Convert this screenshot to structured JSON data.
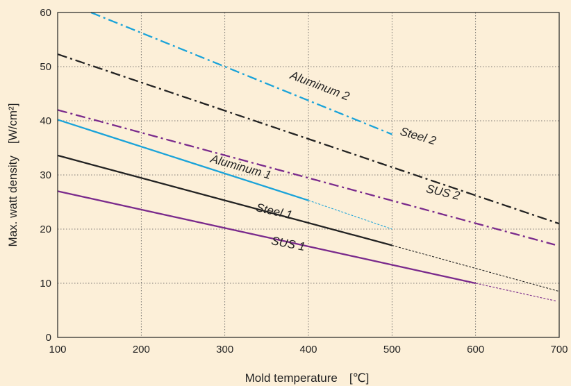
{
  "chart_data": {
    "type": "line",
    "title": "",
    "xlabel": "Mold temperature　[℃]",
    "ylabel": "Max. watt density　[W/cm²]",
    "xlim": [
      100,
      700
    ],
    "ylim": [
      0,
      60
    ],
    "xticks": [
      100,
      200,
      300,
      400,
      500,
      600,
      700
    ],
    "yticks": [
      0,
      10,
      20,
      30,
      40,
      50,
      60
    ],
    "grid": true,
    "series": [
      {
        "name": "Aluminum 2",
        "color": "#1aa3d9",
        "style": "dashdot",
        "points": [
          [
            140,
            60
          ],
          [
            500,
            37.5
          ]
        ],
        "extension": []
      },
      {
        "name": "Steel 2",
        "color": "#222222",
        "style": "dashdot",
        "points": [
          [
            100,
            52.3
          ],
          [
            700,
            21
          ]
        ],
        "extension": []
      },
      {
        "name": "SUS 2",
        "color": "#7a2a8c",
        "style": "dashdot",
        "points": [
          [
            100,
            42
          ],
          [
            695,
            17.1
          ]
        ],
        "extension": []
      },
      {
        "name": "Aluminum 1",
        "color": "#1aa3d9",
        "style": "solid",
        "points": [
          [
            100,
            40.2
          ],
          [
            400,
            25.3
          ]
        ],
        "extension": [
          [
            400,
            25.3
          ],
          [
            500,
            20
          ]
        ]
      },
      {
        "name": "Steel 1",
        "color": "#222222",
        "style": "solid",
        "points": [
          [
            100,
            33.6
          ],
          [
            500,
            17
          ]
        ],
        "extension": [
          [
            500,
            17
          ],
          [
            700,
            8.5
          ]
        ]
      },
      {
        "name": "SUS 1",
        "color": "#7a2a8c",
        "style": "solid",
        "points": [
          [
            100,
            27
          ],
          [
            600,
            10
          ]
        ],
        "extension": [
          [
            600,
            10
          ],
          [
            697,
            6.7
          ]
        ]
      }
    ],
    "annotations": [
      {
        "text": "Aluminum 2",
        "x": 412,
        "y": 45.8,
        "angle": 21
      },
      {
        "text": "Steel 2",
        "x": 530,
        "y": 36.5,
        "angle": 16
      },
      {
        "text": "SUS 2",
        "x": 560,
        "y": 26.1,
        "angle": 13
      },
      {
        "text": "Aluminum 1",
        "x": 318,
        "y": 30.8,
        "angle": 16
      },
      {
        "text": "Steel 1",
        "x": 358,
        "y": 22.6,
        "angle": 13
      },
      {
        "text": "SUS 1",
        "x": 375,
        "y": 16.6,
        "angle": 11
      }
    ]
  }
}
